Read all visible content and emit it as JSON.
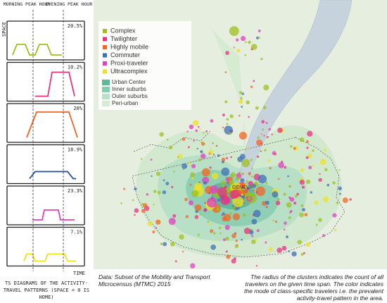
{
  "diagrams": {
    "morning_label": "MORNING PEAK HOUR",
    "evening_label": "EVENING PEAK HOUR",
    "space_label": "SPACE",
    "time_label": "TIME",
    "caption": "TS DIAGRAMS OF THE ACTIVITY-TRAVEL PATTERNS (SPACE = 0 IS HOME)",
    "panels": [
      {
        "share": "20.5%",
        "color": "#9fbf1f"
      },
      {
        "share": "10.2%",
        "color": "#e8337f"
      },
      {
        "share": "20%",
        "color": "#f26522"
      },
      {
        "share": "18.9%",
        "color": "#1f4e9a"
      },
      {
        "share": "23.3%",
        "color": "#e040c0"
      },
      {
        "share": "7.1%",
        "color": "#f0e020"
      }
    ]
  },
  "map": {
    "city_label": "GENEVA",
    "legend_classes": [
      {
        "name": "Complex",
        "color": "#9fbf1f"
      },
      {
        "name": "Twilighter",
        "color": "#e8337f"
      },
      {
        "name": "Highly mobile",
        "color": "#f26522"
      },
      {
        "name": "Commuter",
        "color": "#3f6fb6"
      },
      {
        "name": "Proxi-traveler",
        "color": "#e040c0"
      },
      {
        "name": "Ultracomplex",
        "color": "#f0e020"
      }
    ],
    "legend_areas": [
      {
        "name": "Urban Center",
        "color": "#5fb89a"
      },
      {
        "name": "Inner suburbs",
        "color": "#86cdb0"
      },
      {
        "name": "Outer suburbs",
        "color": "#b5e2c8"
      },
      {
        "name": "Peri-urban",
        "color": "#d6ecd2"
      }
    ]
  },
  "data_note": "Data: Subset of the Mobility and Transport Microcensus (MTMC) 2015",
  "explanation": "The radius of the clusters indicates the count of all travelers on the given time span. The color indicates the mode of class-specific  travelers i.e. the prevalent activity-travel pattern in the area."
}
